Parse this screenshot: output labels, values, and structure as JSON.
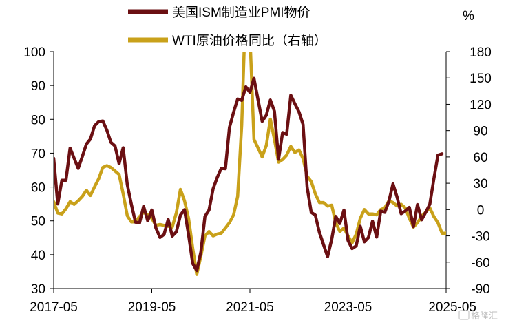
{
  "chart_data": {
    "type": "line",
    "y_unit_right": "%",
    "ylim_left": [
      30,
      100
    ],
    "ylim_right": [
      -90,
      180
    ],
    "yticks_left": [
      100,
      90,
      80,
      70,
      60,
      50,
      40,
      30
    ],
    "yticks_right": [
      180,
      150,
      120,
      90,
      60,
      30,
      0,
      -30,
      -60,
      -90
    ],
    "xticks": [
      "2017-05",
      "2019-05",
      "2021-05",
      "2023-05",
      "2025-05"
    ],
    "legend_position": "top",
    "grid": false,
    "series": [
      {
        "name": "美国ISM制造业PMI物价",
        "axis": "left",
        "color": "#6b0f12",
        "points": [
          [
            "2017-05",
            68.5
          ],
          [
            "2017-06",
            55.0
          ],
          [
            "2017-07",
            62.0
          ],
          [
            "2017-08",
            62.0
          ],
          [
            "2017-09",
            71.5
          ],
          [
            "2017-10",
            68.5
          ],
          [
            "2017-11",
            65.5
          ],
          [
            "2017-12",
            69.0
          ],
          [
            "2018-01",
            72.7
          ],
          [
            "2018-02",
            74.2
          ],
          [
            "2018-03",
            78.1
          ],
          [
            "2018-04",
            79.3
          ],
          [
            "2018-05",
            79.5
          ],
          [
            "2018-06",
            76.8
          ],
          [
            "2018-07",
            73.2
          ],
          [
            "2018-08",
            72.1
          ],
          [
            "2018-09",
            66.9
          ],
          [
            "2018-10",
            71.6
          ],
          [
            "2018-11",
            60.7
          ],
          [
            "2018-12",
            54.9
          ],
          [
            "2019-01",
            49.6
          ],
          [
            "2019-02",
            49.4
          ],
          [
            "2019-03",
            54.3
          ],
          [
            "2019-04",
            50.0
          ],
          [
            "2019-05",
            53.2
          ],
          [
            "2019-06",
            47.9
          ],
          [
            "2019-07",
            45.1
          ],
          [
            "2019-08",
            46.0
          ],
          [
            "2019-09",
            50.4
          ],
          [
            "2019-10",
            45.5
          ],
          [
            "2019-11",
            46.7
          ],
          [
            "2019-12",
            51.7
          ],
          [
            "2020-01",
            53.3
          ],
          [
            "2020-02",
            45.9
          ],
          [
            "2020-03",
            37.4
          ],
          [
            "2020-04",
            35.3
          ],
          [
            "2020-05",
            40.8
          ],
          [
            "2020-06",
            51.3
          ],
          [
            "2020-07",
            53.2
          ],
          [
            "2020-08",
            59.5
          ],
          [
            "2020-09",
            62.8
          ],
          [
            "2020-10",
            65.5
          ],
          [
            "2020-11",
            65.4
          ],
          [
            "2020-12",
            77.6
          ],
          [
            "2021-01",
            82.1
          ],
          [
            "2021-02",
            86.0
          ],
          [
            "2021-03",
            85.6
          ],
          [
            "2021-04",
            89.6
          ],
          [
            "2021-05",
            88.0
          ],
          [
            "2021-06",
            92.1
          ],
          [
            "2021-07",
            85.7
          ],
          [
            "2021-08",
            79.4
          ],
          [
            "2021-09",
            81.2
          ],
          [
            "2021-10",
            85.7
          ],
          [
            "2021-11",
            82.4
          ],
          [
            "2021-12",
            68.2
          ],
          [
            "2022-01",
            76.1
          ],
          [
            "2022-02",
            75.6
          ],
          [
            "2022-03",
            87.1
          ],
          [
            "2022-04",
            84.6
          ],
          [
            "2022-05",
            82.2
          ],
          [
            "2022-06",
            78.5
          ],
          [
            "2022-07",
            60.0
          ],
          [
            "2022-08",
            52.5
          ],
          [
            "2022-09",
            51.7
          ],
          [
            "2022-10",
            46.6
          ],
          [
            "2022-11",
            43.0
          ],
          [
            "2022-12",
            39.4
          ],
          [
            "2023-01",
            44.5
          ],
          [
            "2023-02",
            51.3
          ],
          [
            "2023-03",
            49.2
          ],
          [
            "2023-04",
            53.2
          ],
          [
            "2023-05",
            44.2
          ],
          [
            "2023-06",
            41.8
          ],
          [
            "2023-07",
            42.6
          ],
          [
            "2023-08",
            48.4
          ],
          [
            "2023-09",
            43.8
          ],
          [
            "2023-10",
            45.1
          ],
          [
            "2023-11",
            49.9
          ],
          [
            "2023-12",
            45.2
          ],
          [
            "2024-01",
            52.9
          ],
          [
            "2024-02",
            52.5
          ],
          [
            "2024-03",
            55.8
          ],
          [
            "2024-04",
            60.9
          ],
          [
            "2024-05",
            57.0
          ],
          [
            "2024-06",
            52.1
          ],
          [
            "2024-07",
            52.9
          ],
          [
            "2024-08",
            54.0
          ],
          [
            "2024-09",
            48.3
          ],
          [
            "2024-10",
            54.8
          ],
          [
            "2024-11",
            50.3
          ],
          [
            "2024-12",
            52.5
          ],
          [
            "2025-01",
            54.9
          ],
          [
            "2025-02",
            62.4
          ],
          [
            "2025-03",
            69.4
          ],
          [
            "2025-04",
            69.8
          ]
        ]
      },
      {
        "name": "WTI原油价格同比（右轴）",
        "axis": "right",
        "color": "#c9a11a",
        "points": [
          [
            "2017-05",
            9
          ],
          [
            "2017-06",
            -4
          ],
          [
            "2017-07",
            -5
          ],
          [
            "2017-08",
            1
          ],
          [
            "2017-09",
            9
          ],
          [
            "2017-10",
            6
          ],
          [
            "2017-11",
            10
          ],
          [
            "2017-12",
            15
          ],
          [
            "2018-01",
            22
          ],
          [
            "2018-02",
            16
          ],
          [
            "2018-03",
            26
          ],
          [
            "2018-04",
            35
          ],
          [
            "2018-05",
            48
          ],
          [
            "2018-06",
            50
          ],
          [
            "2018-07",
            48
          ],
          [
            "2018-08",
            44
          ],
          [
            "2018-09",
            40
          ],
          [
            "2018-10",
            18
          ],
          [
            "2018-11",
            -7
          ],
          [
            "2018-12",
            -14
          ],
          [
            "2019-01",
            -14
          ],
          [
            "2019-02",
            -8
          ],
          [
            "2019-03",
            -3
          ],
          [
            "2019-04",
            -6
          ],
          [
            "2019-05",
            -10
          ],
          [
            "2019-06",
            -18
          ],
          [
            "2019-07",
            -17
          ],
          [
            "2019-08",
            -18
          ],
          [
            "2019-09",
            -19
          ],
          [
            "2019-10",
            -20
          ],
          [
            "2019-11",
            -4
          ],
          [
            "2019-12",
            23
          ],
          [
            "2020-01",
            10
          ],
          [
            "2020-02",
            -10
          ],
          [
            "2020-03",
            -44
          ],
          [
            "2020-04",
            -74
          ],
          [
            "2020-05",
            -53
          ],
          [
            "2020-06",
            -30
          ],
          [
            "2020-07",
            -25
          ],
          [
            "2020-08",
            -30
          ],
          [
            "2020-09",
            -28
          ],
          [
            "2020-10",
            -27
          ],
          [
            "2020-11",
            -21
          ],
          [
            "2020-12",
            -15
          ],
          [
            "2021-01",
            -6
          ],
          [
            "2021-02",
            15
          ],
          [
            "2021-03",
            96
          ],
          [
            "2021-04",
            240
          ],
          [
            "2021-05",
            200
          ],
          [
            "2021-06",
            80
          ],
          [
            "2021-07",
            70
          ],
          [
            "2021-08",
            60
          ],
          [
            "2021-09",
            73
          ],
          [
            "2021-10",
            103
          ],
          [
            "2021-11",
            80
          ],
          [
            "2021-12",
            54
          ],
          [
            "2022-01",
            57
          ],
          [
            "2022-02",
            62
          ],
          [
            "2022-03",
            72
          ],
          [
            "2022-04",
            65
          ],
          [
            "2022-05",
            68
          ],
          [
            "2022-06",
            58
          ],
          [
            "2022-07",
            38
          ],
          [
            "2022-08",
            32
          ],
          [
            "2022-09",
            18
          ],
          [
            "2022-10",
            8
          ],
          [
            "2022-11",
            8
          ],
          [
            "2022-12",
            4
          ],
          [
            "2023-01",
            5
          ],
          [
            "2023-02",
            -15
          ],
          [
            "2023-03",
            -25
          ],
          [
            "2023-04",
            -21
          ],
          [
            "2023-05",
            -30
          ],
          [
            "2023-06",
            -38
          ],
          [
            "2023-07",
            -28
          ],
          [
            "2023-08",
            -10
          ],
          [
            "2023-09",
            0
          ],
          [
            "2023-10",
            -5
          ],
          [
            "2023-11",
            -5
          ],
          [
            "2023-12",
            -6
          ],
          [
            "2024-01",
            0
          ],
          [
            "2024-02",
            2
          ],
          [
            "2024-03",
            10
          ],
          [
            "2024-04",
            8
          ],
          [
            "2024-05",
            4
          ],
          [
            "2024-06",
            6
          ],
          [
            "2024-07",
            2
          ],
          [
            "2024-08",
            -10
          ],
          [
            "2024-09",
            -20
          ],
          [
            "2024-10",
            -15
          ],
          [
            "2024-11",
            -8
          ],
          [
            "2024-12",
            -3
          ],
          [
            "2025-01",
            2
          ],
          [
            "2025-02",
            -8
          ],
          [
            "2025-03",
            -15
          ],
          [
            "2025-04",
            -27
          ],
          [
            "2025-05",
            -27
          ],
          [
            "2025-06",
            -23
          ]
        ]
      }
    ]
  }
}
